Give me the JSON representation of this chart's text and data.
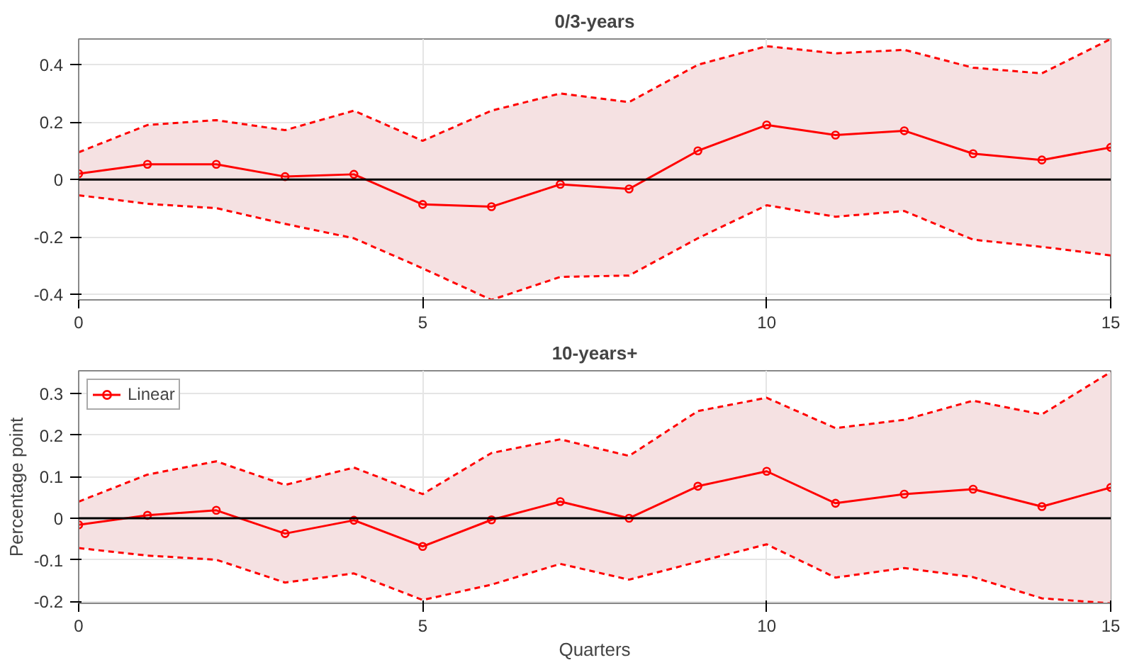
{
  "chart_data": [
    {
      "type": "line",
      "title": "0/3-years",
      "x": [
        0,
        1,
        2,
        3,
        4,
        5,
        6,
        7,
        8,
        9,
        10,
        11,
        12,
        13,
        14,
        15
      ],
      "xlim": [
        0,
        15
      ],
      "xticks": [
        0,
        5,
        10,
        15
      ],
      "ylim": [
        -0.42,
        0.49
      ],
      "yticks": [
        -0.4,
        -0.2,
        0,
        0.2,
        0.4
      ],
      "grid": true,
      "marker": "circle",
      "line_style": "solid",
      "legend": false,
      "ref_lines": [
        {
          "axis": "y",
          "value": 0,
          "color": "#000000"
        }
      ],
      "series": [
        {
          "color": "#ff0000",
          "values": [
            0.02,
            0.053,
            0.053,
            0.01,
            0.018,
            -0.087,
            -0.095,
            -0.017,
            -0.033,
            0.1,
            0.19,
            0.155,
            0.17,
            0.09,
            0.068,
            0.112
          ],
          "lower": [
            -0.055,
            -0.085,
            -0.1,
            -0.155,
            -0.205,
            -0.31,
            -0.42,
            -0.34,
            -0.335,
            -0.205,
            -0.09,
            -0.13,
            -0.11,
            -0.21,
            -0.235,
            -0.265
          ],
          "upper": [
            0.095,
            0.19,
            0.207,
            0.172,
            0.24,
            0.135,
            0.24,
            0.3,
            0.27,
            0.4,
            0.465,
            0.44,
            0.452,
            0.39,
            0.37,
            0.49
          ]
        },
        {
          "color": "#ff0000",
          "line_style": "dashed",
          "marker": "none",
          "values": [
            -0.055,
            -0.085,
            -0.1,
            -0.155,
            -0.205,
            -0.31,
            -0.42,
            -0.34,
            -0.335,
            -0.205,
            -0.09,
            -0.13,
            -0.11,
            -0.21,
            -0.235,
            -0.265
          ]
        },
        {
          "color": "#ff0000",
          "line_style": "dashed",
          "marker": "none",
          "values": [
            0.095,
            0.19,
            0.207,
            0.172,
            0.24,
            0.135,
            0.24,
            0.3,
            0.27,
            0.4,
            0.465,
            0.44,
            0.452,
            0.39,
            0.37,
            0.49
          ]
        }
      ]
    },
    {
      "type": "line",
      "title": "10-years+",
      "xlabel": "Quarters",
      "ylabel": "Percentage point",
      "x": [
        0,
        1,
        2,
        3,
        4,
        5,
        6,
        7,
        8,
        9,
        10,
        11,
        12,
        13,
        14,
        15
      ],
      "xlim": [
        0,
        15
      ],
      "xticks": [
        0,
        5,
        10,
        15
      ],
      "ylim": [
        -0.205,
        0.355
      ],
      "yticks": [
        -0.2,
        -0.1,
        0,
        0.1,
        0.2,
        0.3
      ],
      "grid": true,
      "marker": "circle",
      "line_style": "solid",
      "legend": "top left",
      "ref_lines": [
        {
          "axis": "y",
          "value": 0,
          "color": "#000000"
        }
      ],
      "series": [
        {
          "name": "Linear",
          "color": "#ff0000",
          "values": [
            -0.016,
            0.007,
            0.019,
            -0.037,
            -0.005,
            -0.068,
            -0.004,
            0.04,
            0.0,
            0.077,
            0.113,
            0.036,
            0.058,
            0.07,
            0.028,
            0.074
          ],
          "lower": [
            -0.072,
            -0.09,
            -0.1,
            -0.155,
            -0.133,
            -0.197,
            -0.16,
            -0.11,
            -0.148,
            -0.105,
            -0.063,
            -0.143,
            -0.12,
            -0.142,
            -0.193,
            -0.205
          ],
          "upper": [
            0.04,
            0.105,
            0.137,
            0.08,
            0.122,
            0.058,
            0.157,
            0.19,
            0.15,
            0.258,
            0.29,
            0.217,
            0.237,
            0.283,
            0.25,
            0.352
          ]
        },
        {
          "color": "#ff0000",
          "line_style": "dashed",
          "marker": "none",
          "values": [
            -0.072,
            -0.09,
            -0.1,
            -0.155,
            -0.133,
            -0.197,
            -0.16,
            -0.11,
            -0.148,
            -0.105,
            -0.063,
            -0.143,
            -0.12,
            -0.142,
            -0.193,
            -0.205
          ]
        },
        {
          "color": "#ff0000",
          "line_style": "dashed",
          "marker": "none",
          "values": [
            0.04,
            0.105,
            0.137,
            0.08,
            0.122,
            0.058,
            0.157,
            0.19,
            0.15,
            0.258,
            0.29,
            0.217,
            0.237,
            0.283,
            0.25,
            0.352
          ]
        }
      ]
    }
  ]
}
